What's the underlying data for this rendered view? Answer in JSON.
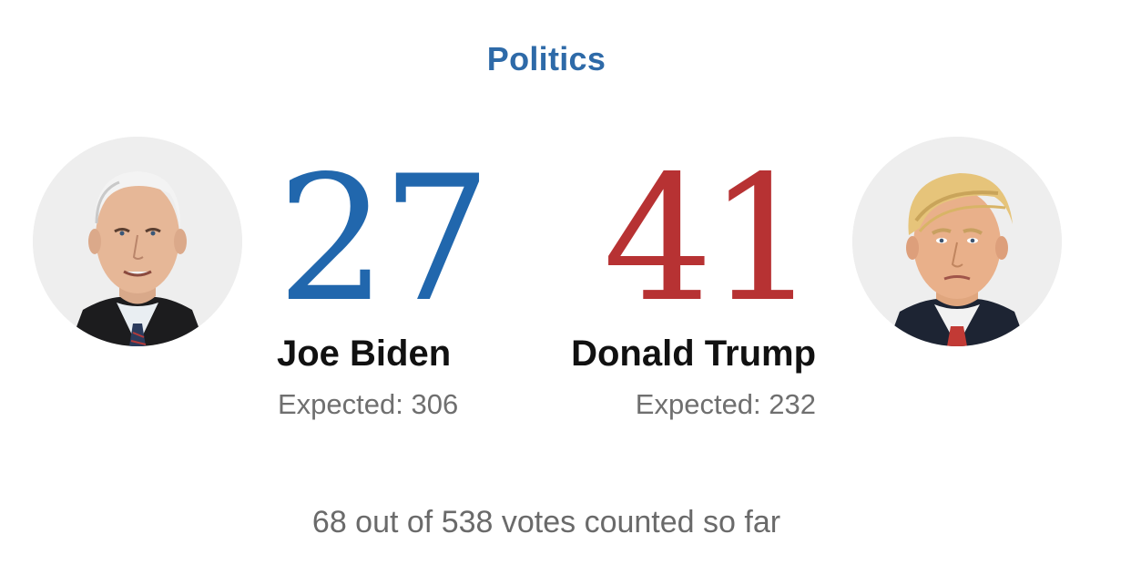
{
  "header": {
    "section_title": "Politics"
  },
  "candidates": [
    {
      "name": "Joe Biden",
      "votes": "27",
      "expected_label": "Expected: 306",
      "color": "#2167ad",
      "avatar_icon": "biden-portrait"
    },
    {
      "name": "Donald Trump",
      "votes": "41",
      "expected_label": "Expected: 232",
      "color": "#b73233",
      "avatar_icon": "trump-portrait"
    }
  ],
  "summary": {
    "text": "68 out of 538 votes counted so far"
  },
  "colors": {
    "accent": "#2e6aa8",
    "text_dark": "#111111",
    "text_muted": "#6f6f6f"
  }
}
